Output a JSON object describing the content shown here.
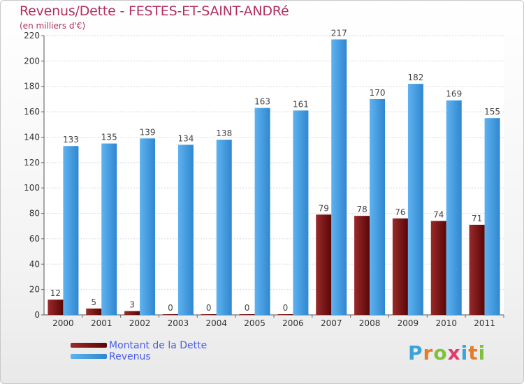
{
  "chart_data": {
    "type": "bar",
    "title": "Revenus/Dette - FESTES-ET-SAINT-ANDRé",
    "subtitle": "(en milliers d'€)",
    "categories": [
      "2000",
      "2001",
      "2002",
      "2003",
      "2004",
      "2005",
      "2006",
      "2007",
      "2008",
      "2009",
      "2010",
      "2011"
    ],
    "series": [
      {
        "name": "Montant de la Dette",
        "color": "#7a1414",
        "values": [
          12,
          5,
          3,
          0,
          0,
          0,
          0,
          79,
          78,
          76,
          74,
          71
        ]
      },
      {
        "name": "Revenus",
        "color": "#4da3e6",
        "values": [
          133,
          135,
          139,
          134,
          138,
          163,
          161,
          217,
          170,
          182,
          169,
          155
        ]
      }
    ],
    "ylim": [
      0,
      220
    ],
    "yticks": [
      0,
      20,
      40,
      60,
      80,
      100,
      120,
      140,
      160,
      180,
      200,
      220
    ],
    "grid": true,
    "legend_position": "bottom-left"
  },
  "logo": {
    "letters": [
      "P",
      "r",
      "o",
      "x",
      "i",
      "t",
      "i"
    ],
    "colors": [
      "#3aa3dc",
      "#e57c2b",
      "#7fc13b",
      "#e23a6f",
      "#3aa3dc",
      "#e57c2b",
      "#7fc13b"
    ]
  }
}
